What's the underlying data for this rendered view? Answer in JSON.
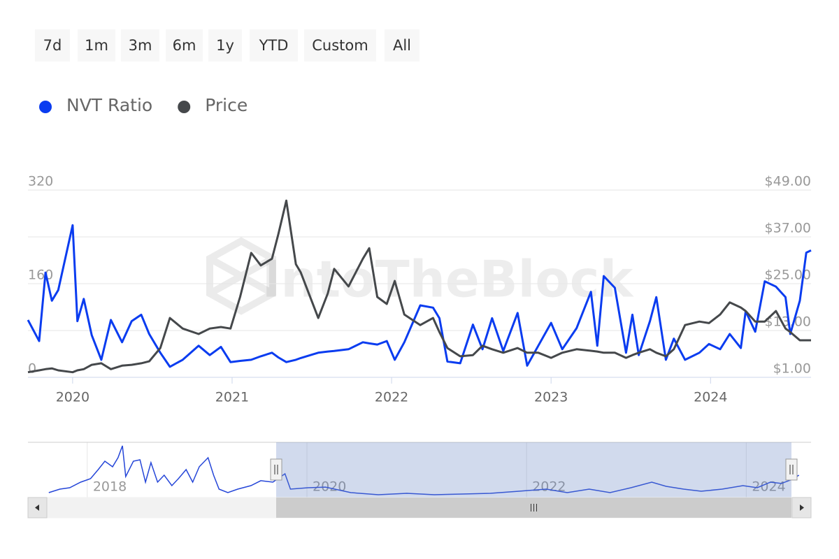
{
  "range_buttons": [
    "7d",
    "1m",
    "3m",
    "6m",
    "1y",
    "YTD",
    "Custom",
    "All"
  ],
  "watermark": "IntoTheBlock",
  "chart_data": [
    {
      "type": "line",
      "legend": "top-left",
      "grid": true,
      "x": [
        2019.72,
        2019.79,
        2019.83,
        2019.87,
        2019.91,
        2020.0,
        2020.03,
        2020.07,
        2020.12,
        2020.18,
        2020.24,
        2020.31,
        2020.37,
        2020.43,
        2020.48,
        2020.55,
        2020.61,
        2020.69,
        2020.79,
        2020.86,
        2020.93,
        2020.99,
        2021.05,
        2021.12,
        2021.18,
        2021.25,
        2021.29,
        2021.34,
        2021.4,
        2021.43,
        2021.54,
        2021.6,
        2021.64,
        2021.73,
        2021.82,
        2021.86,
        2021.91,
        2021.97,
        2022.02,
        2022.08,
        2022.18,
        2022.26,
        2022.3,
        2022.35,
        2022.43,
        2022.51,
        2022.57,
        2022.63,
        2022.7,
        2022.79,
        2022.85,
        2022.92,
        2023.0,
        2023.07,
        2023.16,
        2023.25,
        2023.29,
        2023.33,
        2023.4,
        2023.47,
        2023.51,
        2023.55,
        2023.62,
        2023.66,
        2023.72,
        2023.77,
        2023.84,
        2023.93,
        2023.99,
        2024.06,
        2024.12,
        2024.19,
        2024.22,
        2024.28,
        2024.34,
        2024.41,
        2024.47,
        2024.5,
        2024.56,
        2024.6,
        2024.63
      ],
      "xlim": [
        2019.72,
        2024.63
      ],
      "xticks": [
        2020,
        2021,
        2022,
        2023,
        2024
      ],
      "ylim": [
        0,
        320
      ],
      "yticks": [
        0,
        160,
        320
      ],
      "y2lim": [
        1,
        49
      ],
      "y2ticks": [
        {
          "value": 1,
          "label": "$1.00"
        },
        {
          "value": 13,
          "label": "$13.00"
        },
        {
          "value": 25,
          "label": "$25.00"
        },
        {
          "value": 37,
          "label": "$37.00"
        },
        {
          "value": 49,
          "label": "$49.00"
        }
      ],
      "series": [
        {
          "name": "NVT Ratio",
          "color": "#0a3cf0",
          "values": [
            98,
            62,
            179,
            131,
            149,
            260,
            96,
            134,
            72,
            30,
            98,
            60,
            96,
            107,
            74,
            42,
            18,
            30,
            54,
            38,
            52,
            26,
            28,
            30,
            36,
            42,
            34,
            26,
            30,
            33,
            42,
            44,
            45,
            48,
            60,
            58,
            56,
            62,
            30,
            60,
            123,
            119,
            101,
            27,
            24,
            90,
            48,
            101,
            45,
            110,
            20,
            54,
            93,
            48,
            84,
            146,
            54,
            173,
            153,
            42,
            107,
            38,
            96,
            137,
            30,
            66,
            30,
            42,
            57,
            48,
            74,
            50,
            113,
            78,
            164,
            155,
            137,
            74,
            131,
            213,
            217
          ]
        },
        {
          "name": "Price",
          "color": "#45484b",
          "axis": "y2",
          "values": [
            2.3,
            2.8,
            3.1,
            3.3,
            2.8,
            2.3,
            2.8,
            3.1,
            4.2,
            4.6,
            3.1,
            4.0,
            4.2,
            4.6,
            5.1,
            8.5,
            16.2,
            13.5,
            12.1,
            13.5,
            13.9,
            13.5,
            21.6,
            32.9,
            29.7,
            31.4,
            37.7,
            46.3,
            30.0,
            27.9,
            16.2,
            22.5,
            28.8,
            24.3,
            31.4,
            34.1,
            21.6,
            19.8,
            25.7,
            17.1,
            14.4,
            16.2,
            12.6,
            8.5,
            6.4,
            6.7,
            9.1,
            8.2,
            7.3,
            8.5,
            7.3,
            7.3,
            6.0,
            7.3,
            8.2,
            7.8,
            7.6,
            7.3,
            7.3,
            6.0,
            6.7,
            7.3,
            8.2,
            7.3,
            6.4,
            8.2,
            14.4,
            15.3,
            14.9,
            17.1,
            20.2,
            18.9,
            18.0,
            15.3,
            15.3,
            18.0,
            13.5,
            12.6,
            10.5,
            10.5,
            10.5
          ]
        }
      ]
    },
    {
      "type": "line",
      "color": "#2546d8",
      "x": [
        2017.65,
        2017.75,
        2017.84,
        2017.94,
        2018.03,
        2018.1,
        2018.16,
        2018.23,
        2018.28,
        2018.32,
        2018.35,
        2018.42,
        2018.48,
        2018.53,
        2018.58,
        2018.64,
        2018.7,
        2018.77,
        2018.83,
        2018.9,
        2018.96,
        2019.02,
        2019.1,
        2019.15,
        2019.2,
        2019.28,
        2019.37,
        2019.49,
        2019.58,
        2019.69,
        2019.8,
        2019.85,
        2020.01,
        2020.17,
        2020.4,
        2020.65,
        2020.91,
        2021.16,
        2021.42,
        2021.67,
        2021.93,
        2022.18,
        2022.37,
        2022.57,
        2022.76,
        2022.95,
        2023.14,
        2023.27,
        2023.43,
        2023.59,
        2023.78,
        2023.97,
        2024.1,
        2024.22,
        2024.32,
        2024.42,
        2024.48
      ],
      "values": [
        58,
        99,
        115,
        181,
        222,
        329,
        428,
        362,
        469,
        609,
        247,
        428,
        444,
        181,
        411,
        181,
        263,
        140,
        222,
        329,
        181,
        362,
        469,
        263,
        99,
        58,
        99,
        140,
        198,
        181,
        280,
        99,
        115,
        123,
        58,
        33,
        49,
        33,
        41,
        49,
        74,
        99,
        58,
        99,
        58,
        115,
        181,
        132,
        99,
        74,
        99,
        140,
        115,
        181,
        165,
        214,
        263
      ],
      "xlim": [
        2017.46,
        2024.59
      ],
      "xticks": [
        2018,
        2020,
        2022,
        2024
      ],
      "ylim": [
        0,
        650
      ]
    }
  ]
}
